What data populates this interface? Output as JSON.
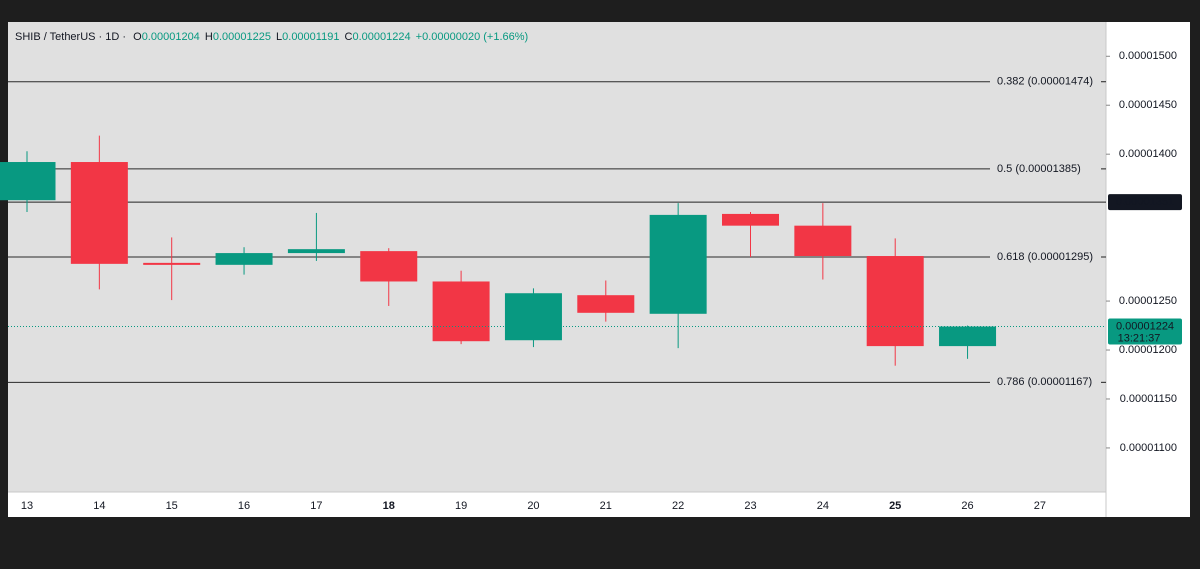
{
  "chart_data": {
    "type": "candlestick",
    "header": {
      "symbol": "SHIB / TetherUS · 1D ·",
      "o_label": "O",
      "o": "0.00001204",
      "h_label": "H",
      "h": "0.00001225",
      "l_label": "L",
      "l": "0.00001191",
      "c_label": "C",
      "c": "0.00001224",
      "change": "+0.00000020 (+1.66%)"
    },
    "categories": [
      "13",
      "14",
      "15",
      "16",
      "17",
      "18",
      "19",
      "20",
      "21",
      "22",
      "23",
      "24",
      "25",
      "26",
      "27"
    ],
    "bold_categories": [
      5,
      12
    ],
    "open": [
      1.353e-05,
      1.392e-05,
      1.289e-05,
      1.287e-05,
      1.299e-05,
      1.301e-05,
      1.27e-05,
      1.21e-05,
      1.256e-05,
      1.237e-05,
      1.339e-05,
      1.327e-05,
      1.296e-05,
      1.204e-05,
      null
    ],
    "high": [
      1.403e-05,
      1.419e-05,
      1.315e-05,
      1.305e-05,
      1.34e-05,
      1.304e-05,
      1.281e-05,
      1.263e-05,
      1.271e-05,
      1.35e-05,
      1.341e-05,
      1.35e-05,
      1.314e-05,
      1.225e-05,
      null
    ],
    "low": [
      1.341e-05,
      1.262e-05,
      1.251e-05,
      1.277e-05,
      1.291e-05,
      1.245e-05,
      1.206e-05,
      1.203e-05,
      1.229e-05,
      1.202e-05,
      1.295e-05,
      1.272e-05,
      1.184e-05,
      1.191e-05,
      null
    ],
    "close": [
      1.392e-05,
      1.288e-05,
      1.287e-05,
      1.299e-05,
      1.303e-05,
      1.27e-05,
      1.209e-05,
      1.258e-05,
      1.238e-05,
      1.338e-05,
      1.327e-05,
      1.296e-05,
      1.204e-05,
      1.224e-05,
      null
    ],
    "up_color": "#089981",
    "down_color": "#f23645",
    "ylim": [
      1.055e-05,
      1.535e-05
    ],
    "yticks": [
      {
        "value": 1.5e-05,
        "label": "0.00001500"
      },
      {
        "value": 1.45e-05,
        "label": "0.00001450"
      },
      {
        "value": 1.4e-05,
        "label": "0.00001400"
      },
      {
        "value": 1.25e-05,
        "label": "0.00001250"
      },
      {
        "value": 1.2e-05,
        "label": "0.00001200"
      },
      {
        "value": 1.15e-05,
        "label": "0.00001150"
      },
      {
        "value": 1.1e-05,
        "label": "0.00001100"
      }
    ],
    "levels": [
      {
        "value": 1.474e-05,
        "label": "0.382 (0.00001474)"
      },
      {
        "value": 1.385e-05,
        "label": "0.5 (0.00001385)"
      },
      {
        "value": 1.295e-05,
        "label": "0.618 (0.00001295)"
      },
      {
        "value": 1.167e-05,
        "label": "0.786 (0.00001167)"
      }
    ],
    "marked_level": {
      "value": 1.351e-05,
      "label": "0.00001351"
    },
    "price_line": {
      "value": 1.224e-05,
      "label": "0.00001224",
      "countdown": "13:21:37"
    }
  }
}
